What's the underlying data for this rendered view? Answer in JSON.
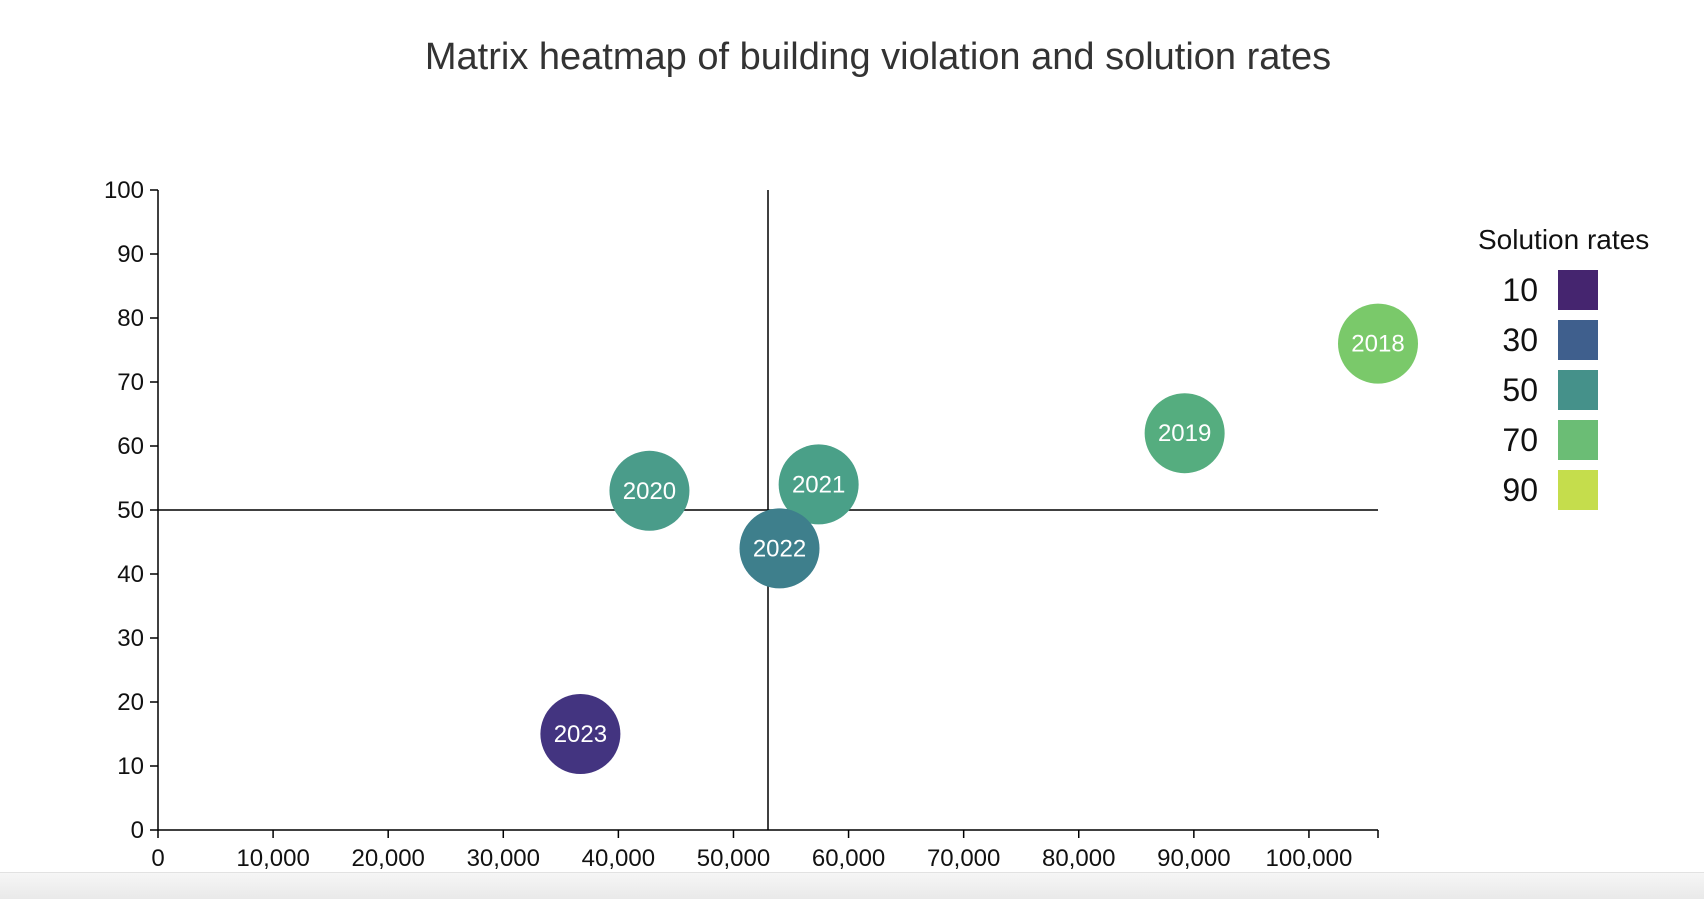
{
  "title": "Matrix heatmap of building violation and solution rates",
  "chart_data": {
    "type": "scatter",
    "title": "Matrix heatmap of building violation and solution rates",
    "xlabel": "",
    "ylabel": "",
    "xlim": [
      0,
      106000
    ],
    "ylim": [
      0,
      100
    ],
    "x_ticks": [
      0,
      10000,
      20000,
      30000,
      40000,
      50000,
      60000,
      70000,
      80000,
      90000,
      100000
    ],
    "x_tick_labels": [
      "0",
      "10,000",
      "20,000",
      "30,000",
      "40,000",
      "50,000",
      "60,000",
      "70,000",
      "80,000",
      "90,000",
      "100,000"
    ],
    "y_ticks": [
      0,
      10,
      20,
      30,
      40,
      50,
      60,
      70,
      80,
      90,
      100
    ],
    "y_tick_labels": [
      "0",
      "10",
      "20",
      "30",
      "40",
      "50",
      "60",
      "70",
      "80",
      "90",
      "100"
    ],
    "reference_lines": {
      "x": 53000,
      "y": 50
    },
    "points": [
      {
        "label": "2018",
        "x": 106000,
        "y": 76,
        "color": "#7ac96a"
      },
      {
        "label": "2019",
        "x": 89200,
        "y": 62,
        "color": "#55ad7f"
      },
      {
        "label": "2020",
        "x": 42700,
        "y": 53,
        "color": "#4a9c8a"
      },
      {
        "label": "2021",
        "x": 57400,
        "y": 54,
        "color": "#4aa088"
      },
      {
        "label": "2022",
        "x": 54000,
        "y": 44,
        "color": "#3e7f8c"
      },
      {
        "label": "2023",
        "x": 36700,
        "y": 15,
        "color": "#433480"
      }
    ],
    "legend": {
      "title": "Solution rates",
      "placement": "right",
      "items": [
        {
          "label": "10",
          "color": "#45256f"
        },
        {
          "label": "30",
          "color": "#3f5f8d"
        },
        {
          "label": "50",
          "color": "#45918a"
        },
        {
          "label": "70",
          "color": "#6bbd75"
        },
        {
          "label": "90",
          "color": "#c5dd4c"
        }
      ]
    },
    "grid": false
  }
}
